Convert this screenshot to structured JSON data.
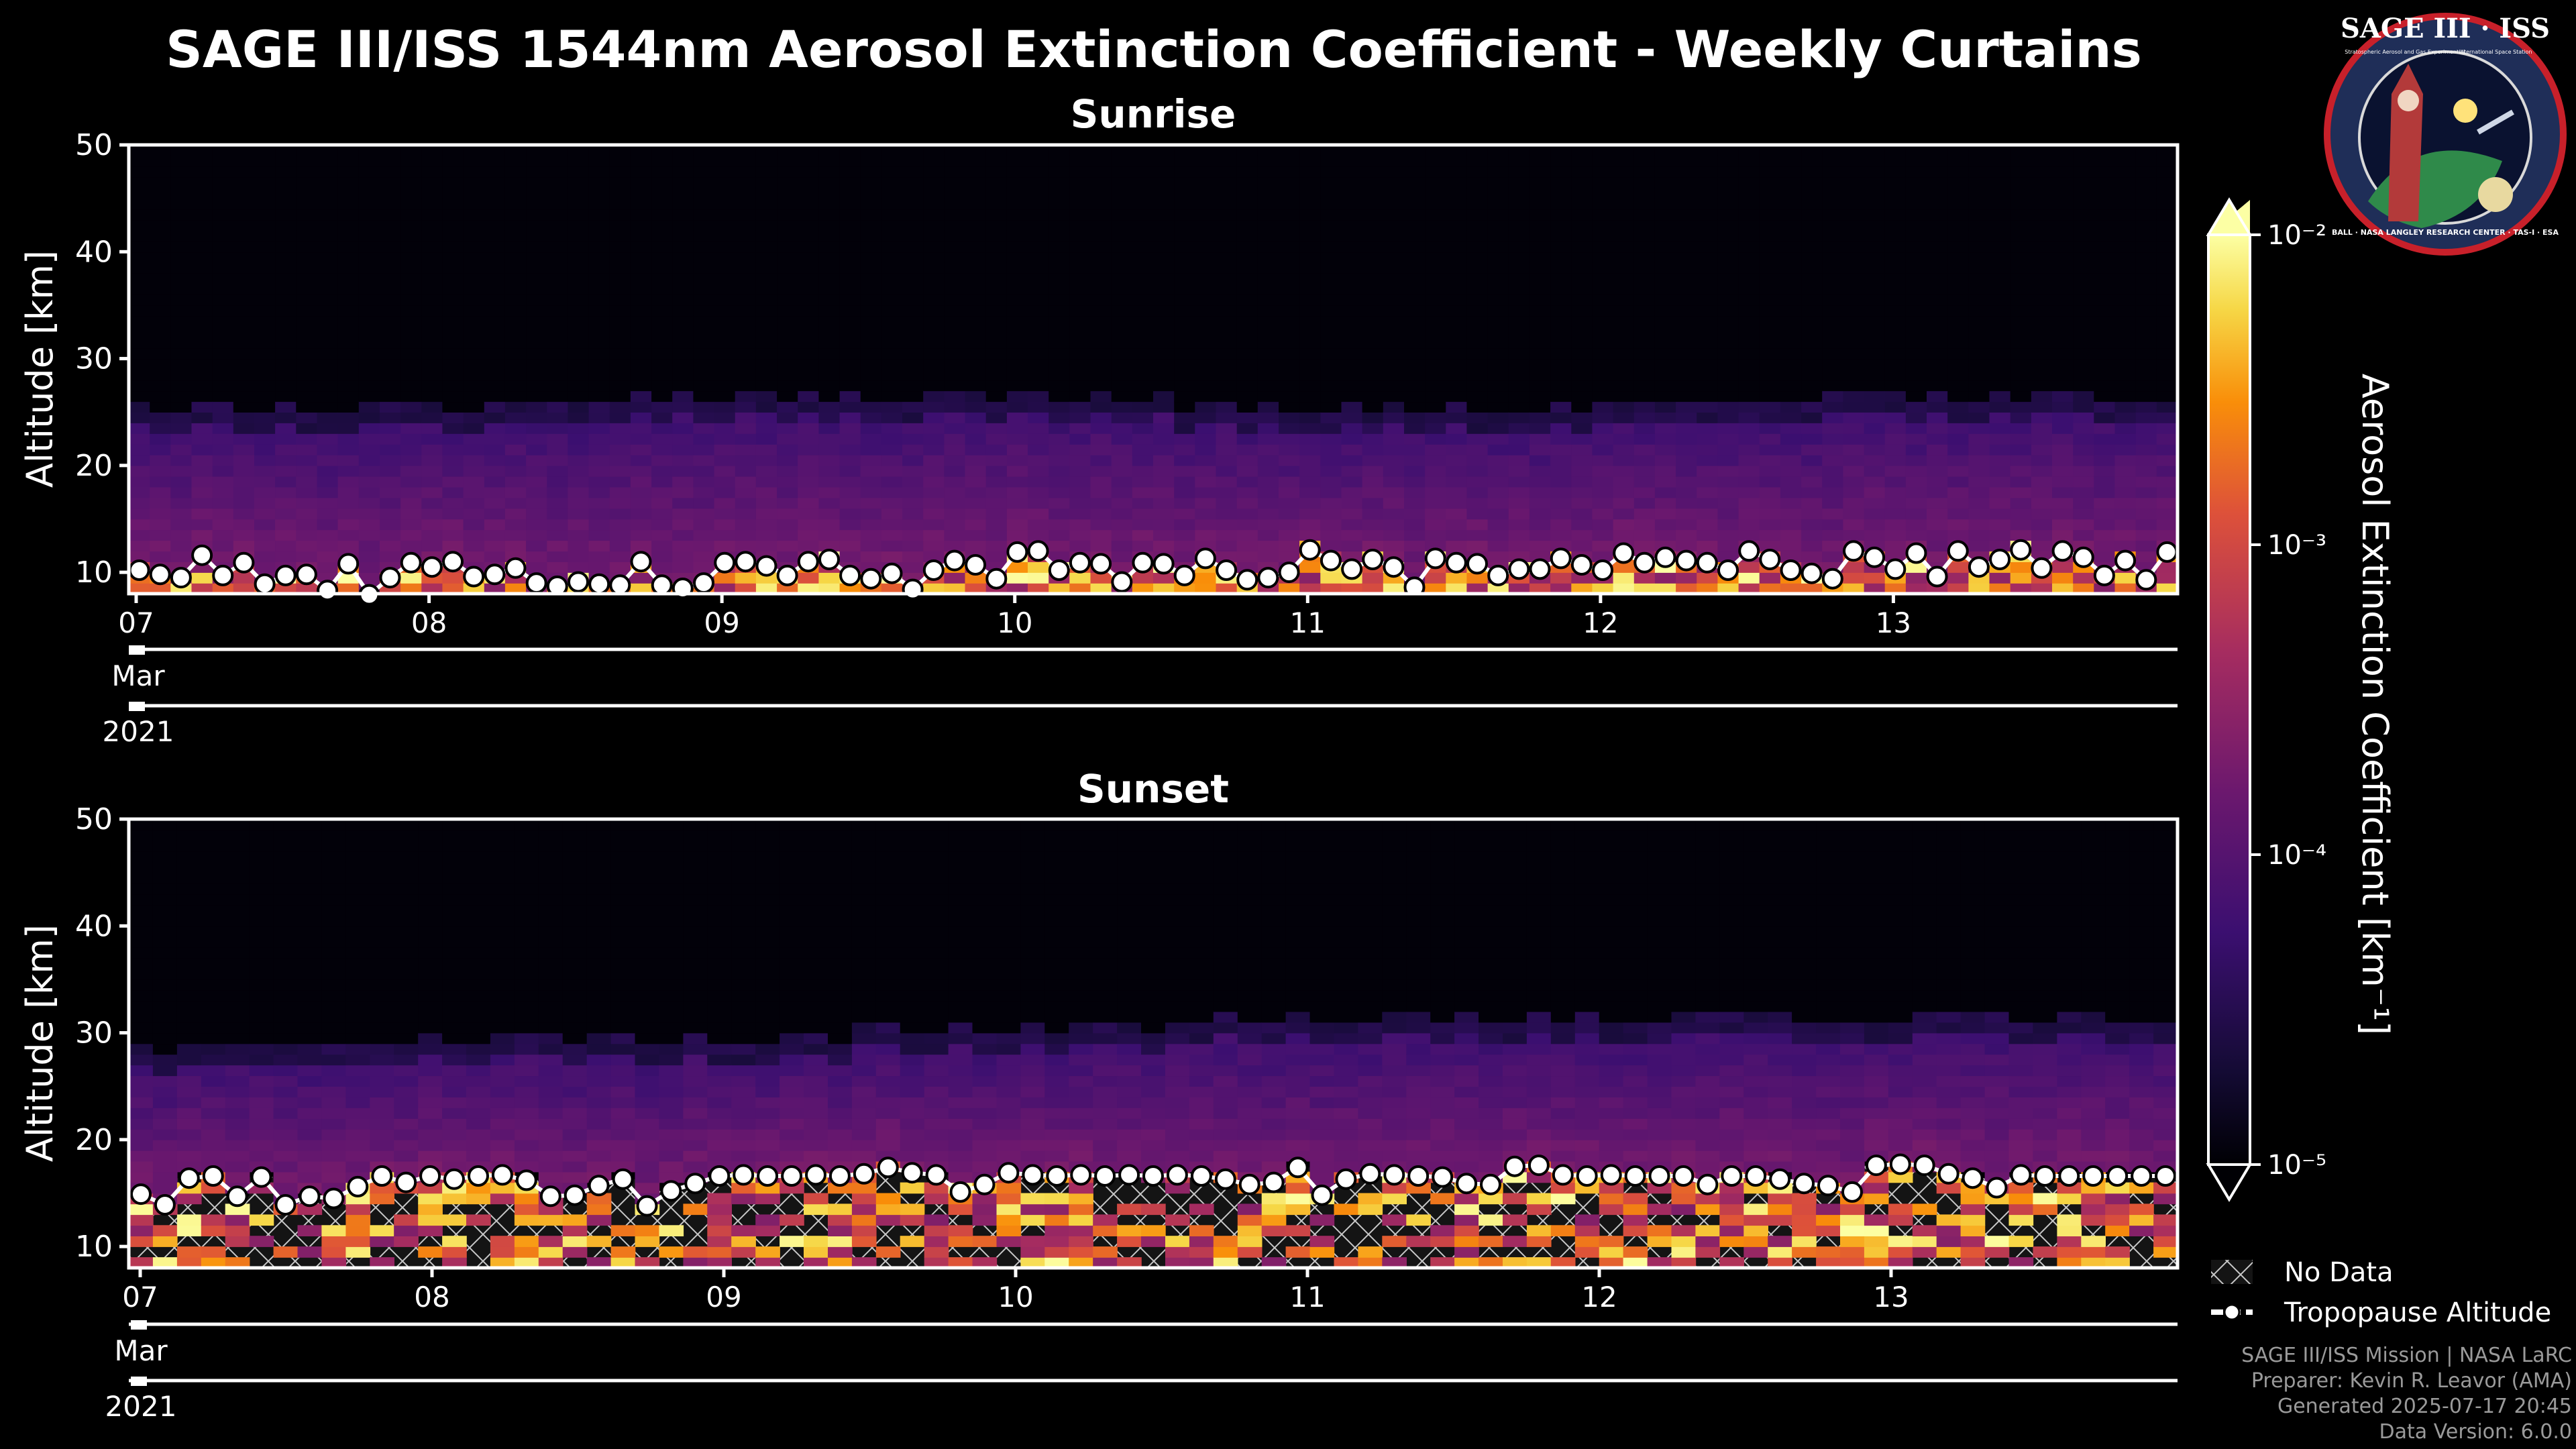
{
  "figure": {
    "title": "SAGE III/ISS 1544nm Aerosol Extinction Coefficient - Weekly Curtains",
    "footer": {
      "line1": "SAGE III/ISS Mission | NASA LaRC",
      "line2": "Preparer: Kevin R. Leavor (AMA)",
      "line3": "Generated 2025-07-17 20:45",
      "line4": "Data Version: 6.0.0"
    },
    "logo": {
      "title": "SAGE III · ISS",
      "subtitle_left": "Stratospheric Aerosol and Gas Experiment III",
      "subtitle_right": "International Space Station",
      "ring_text": "BALL · NASA LANGLEY RESEARCH CENTER · TAS-I · ESA"
    },
    "legend": {
      "no_data": "No Data",
      "tropopause": "Tropopause Altitude"
    }
  },
  "chart_data": [
    {
      "type": "heatmap",
      "title": "Sunrise",
      "ylabel": "Altitude [km]",
      "ylim": [
        8,
        50
      ],
      "yticks": [
        10,
        20,
        30,
        40,
        50
      ],
      "xlim": [
        "2021-03-07",
        "2021-03-14"
      ],
      "xtick_labels": [
        "07",
        "08",
        "09",
        "10",
        "11",
        "12",
        "13"
      ],
      "month_label": "Mar",
      "year_label": "2021",
      "aerosol_layer_top_km": [
        23,
        23,
        24,
        24,
        23,
        23,
        24,
        24
      ],
      "tropopause_km": [
        10.2,
        9.8,
        9.5,
        11.6,
        9.7,
        10.9,
        8.9,
        9.7,
        9.8,
        8.3,
        10.8,
        7.9,
        9.5,
        10.9,
        10.5,
        11.0,
        9.6,
        9.8,
        10.4,
        9.0,
        8.7,
        9.1,
        8.9,
        8.8,
        11.0,
        8.8,
        8.5,
        9.0,
        10.9,
        11.0,
        10.6,
        9.7,
        11.0,
        11.2,
        9.7,
        9.4,
        9.9,
        8.4,
        10.2,
        11.1,
        10.7,
        9.4,
        11.9,
        12.0,
        10.2,
        10.9,
        10.8,
        9.1,
        10.9,
        10.8,
        9.7,
        11.3,
        10.2,
        9.3,
        9.5,
        10.0,
        12.1,
        11.1,
        10.3,
        11.2,
        10.5,
        8.6,
        11.3,
        10.9,
        10.8,
        9.7,
        10.3,
        10.3,
        11.3,
        10.7,
        10.2,
        11.8,
        10.9,
        11.4,
        11.1,
        10.9,
        10.2,
        12.0,
        11.2,
        10.2,
        9.9,
        9.4,
        12.0,
        11.4,
        10.3,
        11.8,
        9.6,
        12.0,
        10.5,
        11.2,
        12.1,
        10.4,
        12.0,
        11.4,
        9.7,
        11.1,
        9.3,
        11.9
      ]
    },
    {
      "type": "heatmap",
      "title": "Sunset",
      "ylabel": "Altitude [km]",
      "ylim": [
        8,
        50
      ],
      "yticks": [
        10,
        20,
        30,
        40,
        50
      ],
      "xlim": [
        "2021-03-07",
        "2021-03-14"
      ],
      "xtick_labels": [
        "07",
        "08",
        "09",
        "10",
        "11",
        "12",
        "13"
      ],
      "month_label": "Mar",
      "year_label": "2021",
      "aerosol_layer_top_km": [
        26,
        27,
        27,
        28,
        29,
        29,
        29,
        29
      ],
      "tropopause_km": [
        14.9,
        13.9,
        16.4,
        16.6,
        14.7,
        16.5,
        13.9,
        14.7,
        14.5,
        15.6,
        16.6,
        16.0,
        16.6,
        16.3,
        16.6,
        16.7,
        16.2,
        14.7,
        14.8,
        15.7,
        16.3,
        13.8,
        15.2,
        15.9,
        16.6,
        16.7,
        16.6,
        16.6,
        16.7,
        16.6,
        16.8,
        17.4,
        16.9,
        16.7,
        15.1,
        15.8,
        16.9,
        16.7,
        16.6,
        16.7,
        16.6,
        16.7,
        16.6,
        16.7,
        16.6,
        16.3,
        15.8,
        16.0,
        17.4,
        14.8,
        16.3,
        16.8,
        16.7,
        16.6,
        16.5,
        15.9,
        15.8,
        17.5,
        17.6,
        16.7,
        16.6,
        16.7,
        16.6,
        16.6,
        16.6,
        15.8,
        16.6,
        16.6,
        16.3,
        15.9,
        15.7,
        15.1,
        17.6,
        17.7,
        17.6,
        16.8,
        16.4,
        15.5,
        16.7,
        16.6,
        16.6,
        16.6,
        16.6,
        16.6,
        16.6
      ]
    },
    {
      "type": "colorbar",
      "label": "Aerosol Extinction Coefficient [km⁻¹]",
      "scale": "log",
      "range": [
        1e-05,
        0.01
      ],
      "tick_labels": [
        "10⁻⁵",
        "10⁻⁴",
        "10⁻³",
        "10⁻²"
      ],
      "colormap": "inferno"
    }
  ],
  "colors": {
    "background": "#000000",
    "axes": "#ffffff",
    "footer_text": "#9a9a9a"
  }
}
